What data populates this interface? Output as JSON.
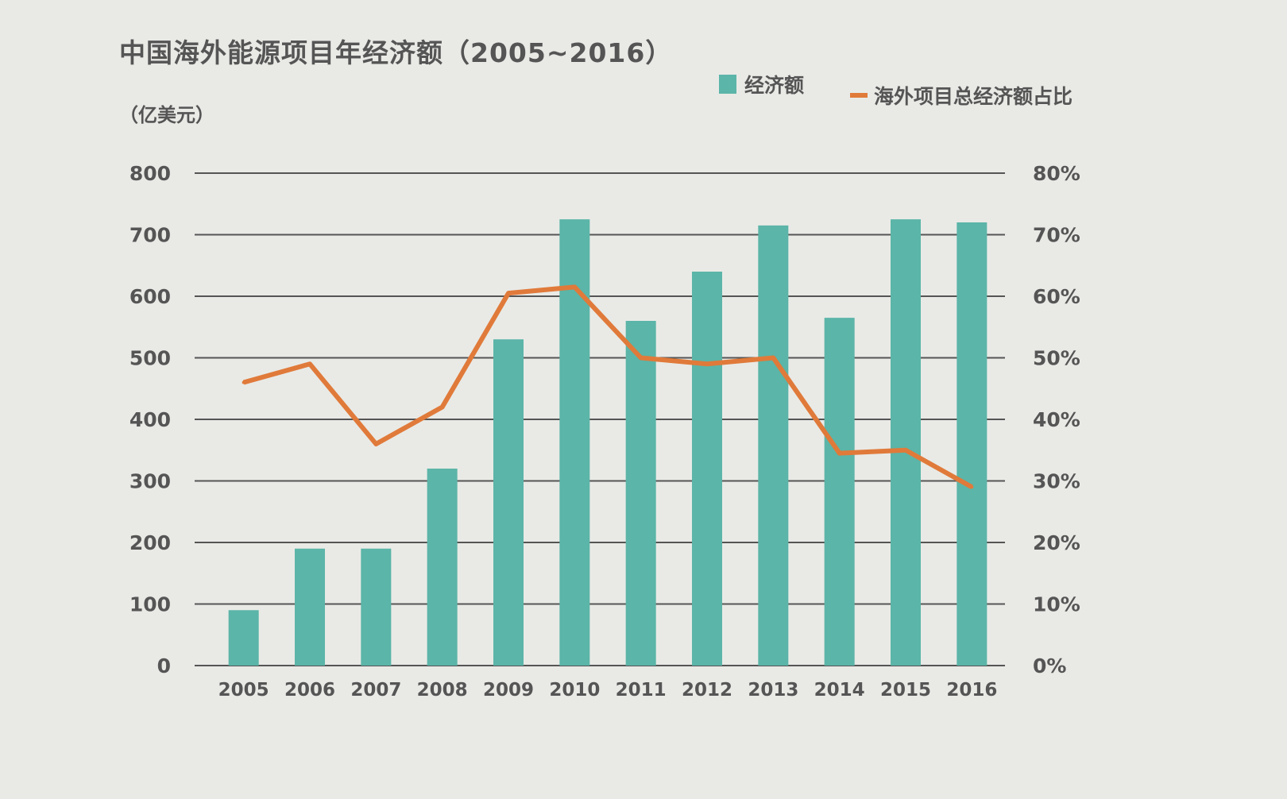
{
  "chart_data": {
    "type": "bar+line",
    "title": "中国海外能源项目年经济额（2005~2016）",
    "ylabel": "（亿美元）",
    "categories": [
      "2005",
      "2006",
      "2007",
      "2008",
      "2009",
      "2010",
      "2011",
      "2012",
      "2013",
      "2014",
      "2015",
      "2016"
    ],
    "series": [
      {
        "name": "经济额",
        "type": "bar",
        "axis": "left",
        "color": "#5bb5a8",
        "values": [
          90,
          190,
          190,
          320,
          530,
          725,
          560,
          640,
          715,
          565,
          725,
          720
        ]
      },
      {
        "name": "海外项目总经济额占比",
        "type": "line",
        "axis": "right",
        "color": "#e07a3a",
        "values": [
          46,
          49,
          36,
          42,
          60.5,
          61.5,
          50,
          49,
          50,
          34.5,
          35,
          29
        ]
      }
    ],
    "ylim_left": [
      0,
      800
    ],
    "yticks_left": [
      "0",
      "100",
      "200",
      "300",
      "400",
      "500",
      "600",
      "700",
      "800"
    ],
    "ylim_right": [
      0,
      80
    ],
    "yticks_right": [
      "0%",
      "10%",
      "20%",
      "30%",
      "40%",
      "50%",
      "60%",
      "70%",
      "80%"
    ],
    "grid": true,
    "legend": "top-right"
  }
}
